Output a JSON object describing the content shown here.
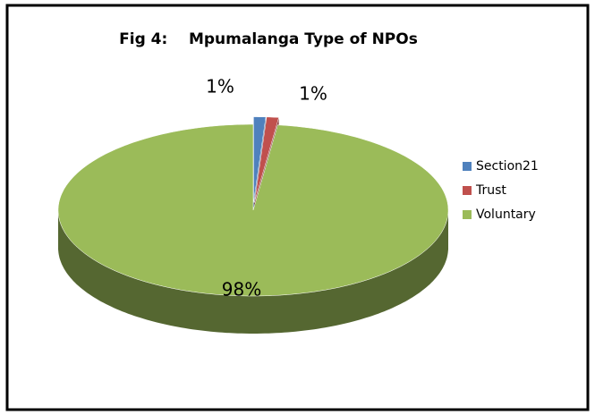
{
  "chart_data": {
    "type": "pie",
    "title": "Fig 4:    Mpumalanga Type of NPOs",
    "categories": [
      "Section21",
      "Trust",
      "Voluntary"
    ],
    "values": [
      1,
      1,
      98
    ],
    "value_labels": [
      "1%",
      "1%",
      "98%"
    ],
    "colors": [
      "#4f81bd",
      "#c0504d",
      "#9bbb59"
    ],
    "legend": "right"
  }
}
